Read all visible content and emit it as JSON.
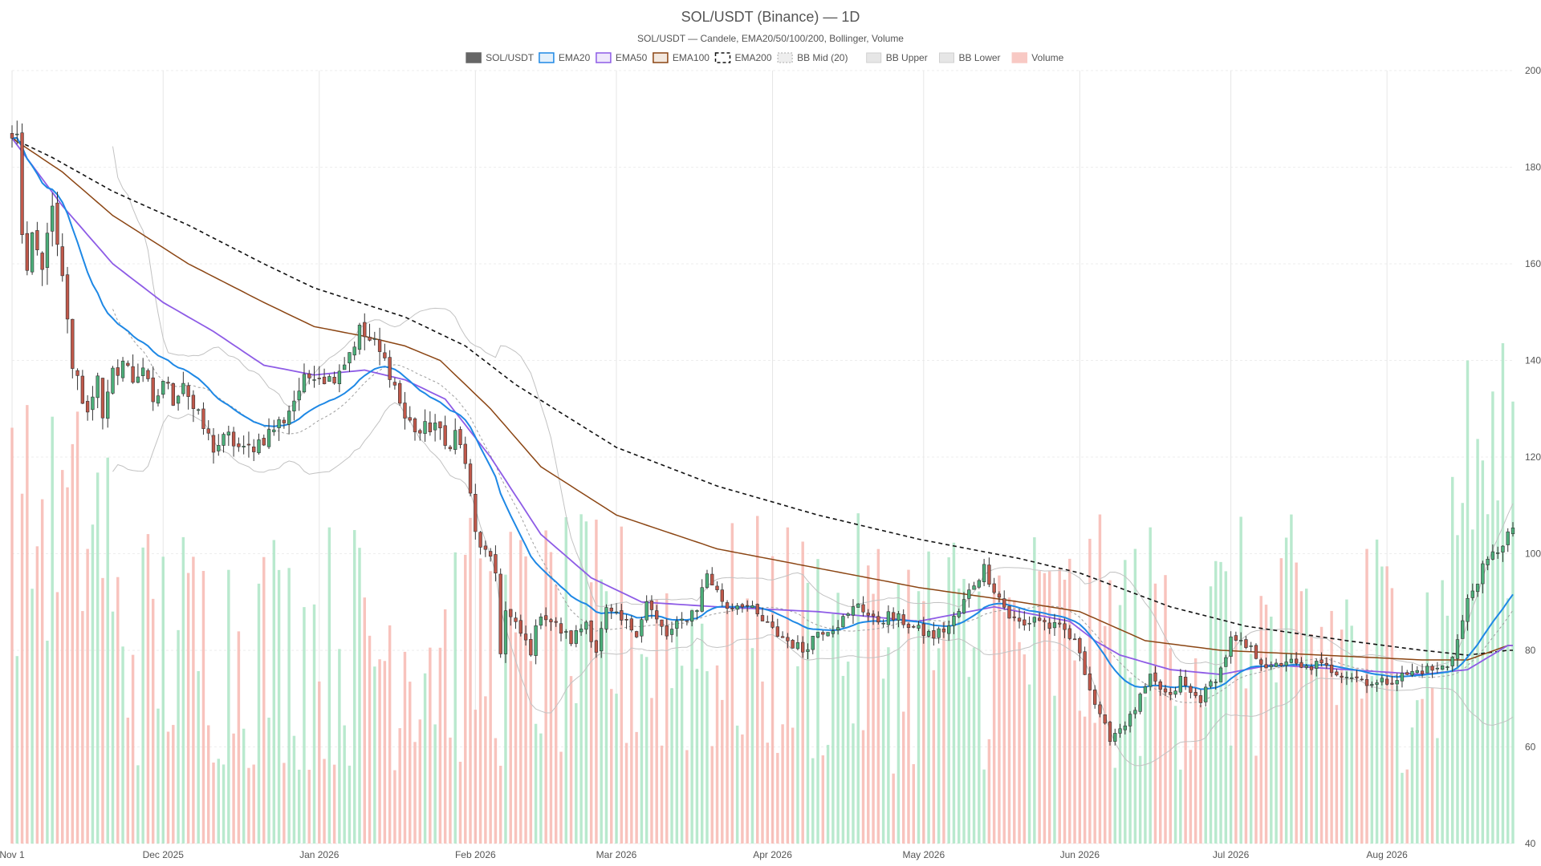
{
  "chart_data": {
    "type": "candlestick",
    "title": "SOL/USDT (Binance) — 1D",
    "subtitle": "SOL/USDT — Candele, EMA20/50/100/200, Bollinger, Volume",
    "legend": [
      {
        "key": "candles",
        "label": "SOL/USDT",
        "color": "#666666"
      },
      {
        "key": "ema20",
        "label": "EMA20",
        "color": "#1e88e5"
      },
      {
        "key": "ema50",
        "label": "EMA50",
        "color": "#8e5ce6"
      },
      {
        "key": "ema100",
        "label": "EMA100",
        "color": "#8b4513"
      },
      {
        "key": "ema200",
        "label": "EMA200",
        "color": "#111111"
      },
      {
        "key": "bbmid",
        "label": "BB Mid (20)",
        "color": "#9e9e9e"
      },
      {
        "key": "bbup",
        "label": "BB Upper",
        "color": "#bdbdbd"
      },
      {
        "key": "bblow",
        "label": "BB Lower",
        "color": "#bdbdbd"
      },
      {
        "key": "volume",
        "label": "Volume",
        "color": "#f4a6a0"
      }
    ],
    "colors": {
      "up": "#4caf7a",
      "down": "#c0584a",
      "vol_up": "#a8e3c2",
      "vol_down": "#f6b4ad"
    },
    "y_ticks": [
      40,
      60,
      80,
      100,
      120,
      140,
      160,
      180,
      200
    ],
    "ylim": [
      40,
      200
    ],
    "x_ticks": [
      {
        "label": "Nov 1",
        "day": 0
      },
      {
        "label": "Dec 2025",
        "day": 30
      },
      {
        "label": "Jan 2026",
        "day": 61
      },
      {
        "label": "Feb 2026",
        "day": 92
      },
      {
        "label": "Mar 2026",
        "day": 120
      },
      {
        "label": "Apr 2026",
        "day": 151
      },
      {
        "label": "May 2026",
        "day": 181
      },
      {
        "label": "Jun 2026",
        "day": 212
      },
      {
        "label": "Jul 2026",
        "day": 242
      },
      {
        "label": "Aug 2026",
        "day": 273
      }
    ],
    "x_span_days": 298,
    "close_anchors": [
      [
        0,
        186
      ],
      [
        1,
        186
      ],
      [
        2,
        167
      ],
      [
        3,
        158
      ],
      [
        4,
        164
      ],
      [
        5,
        162
      ],
      [
        6,
        158
      ],
      [
        7,
        168
      ],
      [
        8,
        170
      ],
      [
        10,
        156
      ],
      [
        12,
        139
      ],
      [
        15,
        129
      ],
      [
        17,
        138
      ],
      [
        18,
        127
      ],
      [
        20,
        137
      ],
      [
        22,
        140
      ],
      [
        24,
        136
      ],
      [
        26,
        139
      ],
      [
        28,
        130
      ],
      [
        30,
        136
      ],
      [
        32,
        132
      ],
      [
        34,
        136
      ],
      [
        36,
        130
      ],
      [
        38,
        126
      ],
      [
        40,
        122
      ],
      [
        43,
        124
      ],
      [
        46,
        121
      ],
      [
        50,
        124
      ],
      [
        54,
        128
      ],
      [
        57,
        134
      ],
      [
        60,
        138
      ],
      [
        63,
        136
      ],
      [
        66,
        140
      ],
      [
        69,
        146
      ],
      [
        72,
        143
      ],
      [
        75,
        138
      ],
      [
        78,
        128
      ],
      [
        81,
        125
      ],
      [
        84,
        127
      ],
      [
        86,
        122
      ],
      [
        88,
        125
      ],
      [
        90,
        119
      ],
      [
        92,
        104
      ],
      [
        94,
        100
      ],
      [
        96,
        96
      ],
      [
        97,
        80
      ],
      [
        98,
        88
      ],
      [
        100,
        85
      ],
      [
        103,
        80
      ],
      [
        105,
        88
      ],
      [
        108,
        85
      ],
      [
        111,
        82
      ],
      [
        114,
        86
      ],
      [
        116,
        80
      ],
      [
        118,
        88
      ],
      [
        121,
        86
      ],
      [
        124,
        84
      ],
      [
        126,
        90
      ],
      [
        128,
        86
      ],
      [
        130,
        83
      ],
      [
        133,
        86
      ],
      [
        136,
        89
      ],
      [
        138,
        96
      ],
      [
        140,
        92
      ],
      [
        142,
        89
      ],
      [
        145,
        90
      ],
      [
        147,
        88
      ],
      [
        149,
        86
      ],
      [
        151,
        84
      ],
      [
        154,
        82
      ],
      [
        157,
        80
      ],
      [
        160,
        84
      ],
      [
        163,
        85
      ],
      [
        166,
        87
      ],
      [
        168,
        90
      ],
      [
        171,
        86
      ],
      [
        174,
        87
      ],
      [
        177,
        86
      ],
      [
        180,
        84
      ],
      [
        183,
        83
      ],
      [
        186,
        85
      ],
      [
        188,
        88
      ],
      [
        191,
        94
      ],
      [
        193,
        97
      ],
      [
        195,
        93
      ],
      [
        198,
        87
      ],
      [
        201,
        85
      ],
      [
        203,
        87
      ],
      [
        206,
        85
      ],
      [
        209,
        84
      ],
      [
        212,
        80
      ],
      [
        214,
        72
      ],
      [
        216,
        66
      ],
      [
        218,
        62
      ],
      [
        220,
        64
      ],
      [
        222,
        66
      ],
      [
        224,
        70
      ],
      [
        226,
        74
      ],
      [
        228,
        72
      ],
      [
        230,
        70
      ],
      [
        232,
        74
      ],
      [
        234,
        71
      ],
      [
        236,
        70
      ],
      [
        238,
        73
      ],
      [
        240,
        76
      ],
      [
        242,
        82
      ],
      [
        244,
        81
      ],
      [
        246,
        80
      ],
      [
        248,
        78
      ],
      [
        250,
        76
      ],
      [
        253,
        78
      ],
      [
        256,
        76
      ],
      [
        259,
        77
      ],
      [
        262,
        76
      ],
      [
        265,
        75
      ],
      [
        268,
        74
      ],
      [
        271,
        73
      ],
      [
        274,
        74
      ],
      [
        277,
        75
      ],
      [
        280,
        76
      ],
      [
        283,
        76
      ],
      [
        285,
        77
      ],
      [
        287,
        82
      ],
      [
        289,
        90
      ],
      [
        291,
        95
      ],
      [
        293,
        98
      ],
      [
        295,
        101
      ],
      [
        297,
        104
      ]
    ],
    "ema200_anchors": [
      [
        0,
        186
      ],
      [
        8,
        182
      ],
      [
        20,
        175
      ],
      [
        35,
        168
      ],
      [
        50,
        160
      ],
      [
        60,
        155
      ],
      [
        72,
        151
      ],
      [
        78,
        149
      ],
      [
        90,
        143
      ],
      [
        100,
        135
      ],
      [
        120,
        122
      ],
      [
        140,
        114
      ],
      [
        160,
        108
      ],
      [
        180,
        103
      ],
      [
        200,
        99
      ],
      [
        212,
        96
      ],
      [
        230,
        89
      ],
      [
        245,
        85
      ],
      [
        265,
        82
      ],
      [
        280,
        80
      ],
      [
        289,
        79
      ],
      [
        297,
        80
      ]
    ],
    "ema100_anchors": [
      [
        0,
        186
      ],
      [
        10,
        179
      ],
      [
        20,
        170
      ],
      [
        35,
        160
      ],
      [
        50,
        152
      ],
      [
        60,
        147
      ],
      [
        70,
        145
      ],
      [
        78,
        143
      ],
      [
        85,
        140
      ],
      [
        95,
        130
      ],
      [
        105,
        118
      ],
      [
        120,
        108
      ],
      [
        140,
        101
      ],
      [
        160,
        97
      ],
      [
        180,
        93
      ],
      [
        200,
        90
      ],
      [
        212,
        88
      ],
      [
        225,
        82
      ],
      [
        240,
        80
      ],
      [
        260,
        79
      ],
      [
        280,
        78
      ],
      [
        289,
        78
      ],
      [
        297,
        81
      ]
    ],
    "ema50_anchors": [
      [
        0,
        186
      ],
      [
        10,
        172
      ],
      [
        20,
        160
      ],
      [
        30,
        152
      ],
      [
        40,
        146
      ],
      [
        50,
        139
      ],
      [
        60,
        137
      ],
      [
        70,
        138
      ],
      [
        78,
        136
      ],
      [
        86,
        132
      ],
      [
        95,
        120
      ],
      [
        105,
        104
      ],
      [
        115,
        95
      ],
      [
        125,
        90
      ],
      [
        140,
        89
      ],
      [
        160,
        88
      ],
      [
        180,
        86
      ],
      [
        195,
        89
      ],
      [
        210,
        86
      ],
      [
        215,
        82
      ],
      [
        220,
        79
      ],
      [
        230,
        76
      ],
      [
        240,
        75
      ],
      [
        250,
        77
      ],
      [
        265,
        76
      ],
      [
        280,
        75
      ],
      [
        289,
        76
      ],
      [
        297,
        81
      ]
    ]
  }
}
